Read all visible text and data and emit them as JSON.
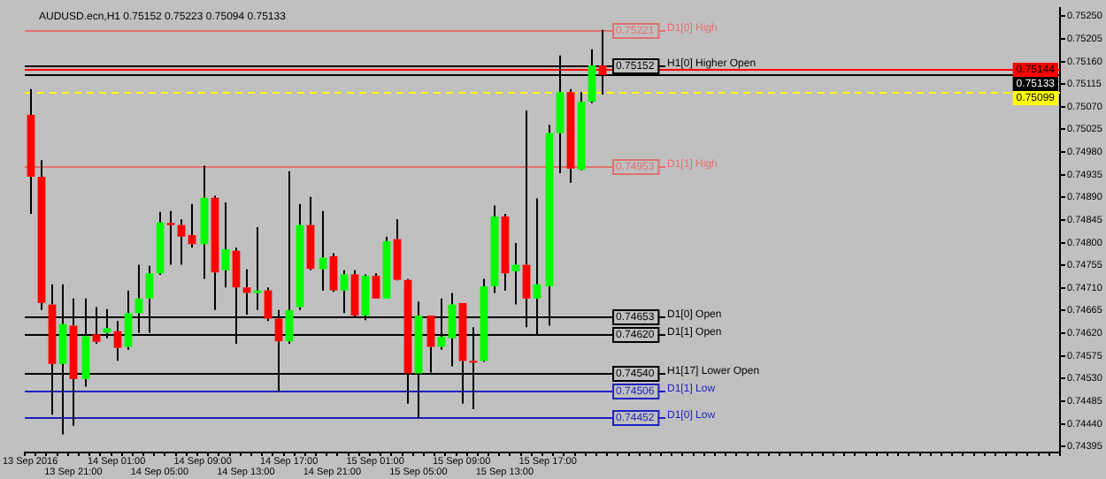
{
  "chart_data": {
    "type": "candlestick",
    "title": "AUDUSD.ecn,H1 0.75152 0.75223 0.75094 0.75133",
    "categories": [
      "13 Sep 2016",
      null,
      null,
      null,
      "13 Sep 21:00",
      null,
      null,
      null,
      "14 Sep 01:00",
      null,
      null,
      null,
      "14 Sep 05:00",
      null,
      null,
      null,
      "14 Sep 09:00",
      null,
      null,
      null,
      "14 Sep 13:00",
      null,
      null,
      null,
      "14 Sep 17:00",
      null,
      null,
      null,
      "14 Sep 21:00",
      null,
      null,
      null,
      "15 Sep 01:00",
      null,
      null,
      null,
      "15 Sep 05:00",
      null,
      null,
      null,
      "15 Sep 09:00",
      null,
      null,
      null,
      "15 Sep 13:00",
      null,
      null,
      null,
      "15 Sep 17:00",
      null,
      null,
      null,
      null,
      null,
      null,
      null,
      null,
      null,
      null,
      null,
      null,
      null,
      null,
      null,
      null,
      null,
      null,
      null,
      null,
      null,
      null,
      null,
      null,
      null,
      null,
      null,
      null,
      null,
      null,
      null,
      null,
      null,
      null,
      null,
      null,
      null,
      null,
      null,
      null,
      null,
      null,
      null,
      null,
      null,
      null,
      null
    ],
    "ohlc": [
      [
        0.75054,
        0.75105,
        0.74857,
        0.74931
      ],
      [
        0.74931,
        0.74964,
        0.74666,
        0.7468
      ],
      [
        0.74677,
        0.74717,
        0.74458,
        0.74559
      ],
      [
        0.74559,
        0.74717,
        0.74419,
        0.74638
      ],
      [
        0.74635,
        0.74689,
        0.74436,
        0.74529
      ],
      [
        0.74529,
        0.74689,
        0.74514,
        0.74614
      ],
      [
        0.74618,
        0.74672,
        0.74599,
        0.74603
      ],
      [
        0.74621,
        0.74668,
        0.7461,
        0.7463
      ],
      [
        0.74624,
        0.74644,
        0.74565,
        0.74591
      ],
      [
        0.74593,
        0.74705,
        0.74587,
        0.7466
      ],
      [
        0.7466,
        0.74756,
        0.74621,
        0.74689
      ],
      [
        0.74689,
        0.74754,
        0.74621,
        0.74739
      ],
      [
        0.74739,
        0.74861,
        0.74736,
        0.7484
      ],
      [
        0.74839,
        0.74863,
        0.74756,
        0.74835
      ],
      [
        0.74835,
        0.74846,
        0.74756,
        0.74812
      ],
      [
        0.74815,
        0.74877,
        0.7479,
        0.74797
      ],
      [
        0.74797,
        0.74953,
        0.74728,
        0.74889
      ],
      [
        0.74889,
        0.74893,
        0.74666,
        0.74741
      ],
      [
        0.74745,
        0.7488,
        0.74711,
        0.74787
      ],
      [
        0.74784,
        0.7479,
        0.74599,
        0.74711
      ],
      [
        0.74711,
        0.74747,
        0.74657,
        0.747
      ],
      [
        0.747,
        0.74831,
        0.74666,
        0.74705
      ],
      [
        0.74705,
        0.74711,
        0.74644,
        0.74649
      ],
      [
        0.74649,
        0.74666,
        0.74503,
        0.74604
      ],
      [
        0.74604,
        0.74942,
        0.74599,
        0.74666
      ],
      [
        0.74672,
        0.74877,
        0.74666,
        0.74835
      ],
      [
        0.74835,
        0.74891,
        0.74745,
        0.74748
      ],
      [
        0.74747,
        0.74863,
        0.74705,
        0.7477
      ],
      [
        0.74773,
        0.74779,
        0.74702,
        0.74705
      ],
      [
        0.74705,
        0.74745,
        0.7466,
        0.74737
      ],
      [
        0.74737,
        0.74745,
        0.74653,
        0.74655
      ],
      [
        0.74655,
        0.74737,
        0.74646,
        0.74734
      ],
      [
        0.74734,
        0.74739,
        0.74689,
        0.74689
      ],
      [
        0.74689,
        0.74812,
        0.74689,
        0.74803
      ],
      [
        0.74807,
        0.74846,
        0.74725,
        0.74726
      ],
      [
        0.74726,
        0.74728,
        0.7448,
        0.7454
      ],
      [
        0.7454,
        0.74683,
        0.74452,
        0.74655
      ],
      [
        0.74655,
        0.74655,
        0.74542,
        0.74593
      ],
      [
        0.74593,
        0.74689,
        0.74587,
        0.74613
      ],
      [
        0.7461,
        0.747,
        0.74554,
        0.74677
      ],
      [
        0.7468,
        0.7468,
        0.7448,
        0.74565
      ],
      [
        0.74565,
        0.74632,
        0.74469,
        0.74563
      ],
      [
        0.74565,
        0.74728,
        0.74563,
        0.74713
      ],
      [
        0.74713,
        0.74874,
        0.747,
        0.74852
      ],
      [
        0.74852,
        0.74857,
        0.74705,
        0.74739
      ],
      [
        0.74743,
        0.74799,
        0.74677,
        0.74756
      ],
      [
        0.74756,
        0.75062,
        0.74632,
        0.74689
      ],
      [
        0.74689,
        0.74888,
        0.74616,
        0.74717
      ],
      [
        0.74713,
        0.75034,
        0.74635,
        0.75018
      ],
      [
        0.75018,
        0.75172,
        0.74938,
        0.75099
      ],
      [
        0.75099,
        0.75105,
        0.74919,
        0.74947
      ],
      [
        0.74945,
        0.75099,
        0.74944,
        0.7508
      ],
      [
        0.7508,
        0.75184,
        0.75077,
        0.75152
      ],
      [
        0.75152,
        0.75223,
        0.75094,
        0.75133
      ],
      null,
      null,
      null,
      null,
      null,
      null,
      null,
      null,
      null,
      null,
      null,
      null,
      null,
      null,
      null,
      null,
      null,
      null,
      null,
      null,
      null,
      null,
      null,
      null,
      null,
      null,
      null,
      null,
      null,
      null,
      null,
      null,
      null,
      null,
      null,
      null,
      null,
      null,
      null,
      null,
      null,
      null
    ],
    "colors": [
      "#ff0000",
      "#ff0000",
      "#ff0000",
      "#00ff00",
      "#ff0000",
      "#00ff00",
      "#ff0000",
      "#00ff00",
      "#ff0000",
      "#00ff00",
      "#00ff00",
      "#00ff00",
      "#00ff00",
      "#ff0000",
      "#ff0000",
      "#ff0000",
      "#00ff00",
      "#ff0000",
      "#00ff00",
      "#ff0000",
      "#ff0000",
      "#00ff00",
      "#ff0000",
      "#ff0000",
      "#00ff00",
      "#00ff00",
      "#ff0000",
      "#00ff00",
      "#ff0000",
      "#00ff00",
      "#ff0000",
      "#00ff00",
      "#ff0000",
      "#00ff00",
      "#ff0000",
      "#ff0000",
      "#00ff00",
      "#ff0000",
      "#00ff00",
      "#00ff00",
      "#ff0000",
      "#ff0000",
      "#00ff00",
      "#00ff00",
      "#ff0000",
      "#00ff00",
      "#ff0000",
      "#00ff00",
      "#00ff00",
      "#00ff00",
      "#ff0000",
      "#00ff00",
      "#00ff00",
      "#ff0000",
      null,
      null,
      null,
      null,
      null,
      null,
      null,
      null,
      null,
      null,
      null,
      null,
      null,
      null,
      null,
      null,
      null,
      null,
      null,
      null,
      null,
      null,
      null,
      null,
      null,
      null,
      null,
      null,
      null,
      null,
      null,
      null,
      null,
      null,
      null,
      null,
      null,
      null,
      null,
      null,
      null,
      null
    ],
    "ylim": [
      0.74383,
      0.75267
    ],
    "yticks": [
      0.74395,
      {
        "value": 0.7444,
        "label": "0.74440"
      },
      0.74485,
      {
        "value": 0.7453,
        "label": "0.74530"
      },
      0.74575,
      {
        "value": 0.7462,
        "label": "0.74620"
      },
      0.74665,
      {
        "value": 0.7471,
        "label": "0.74710"
      },
      0.74755,
      {
        "value": 0.748,
        "label": "0.74800"
      },
      0.74845,
      {
        "value": 0.7489,
        "label": "0.74890"
      },
      0.74935,
      {
        "value": 0.7498,
        "label": "0.74980"
      },
      0.75025,
      {
        "value": 0.7507,
        "label": "0.75070"
      },
      0.75115,
      {
        "value": 0.7516,
        "label": "0.75160"
      },
      0.75205,
      {
        "value": 0.7525,
        "label": "0.75250"
      }
    ],
    "ref_lines": [
      {
        "axis": "y",
        "value": 0.75221,
        "label": "D1[0] High",
        "color": "#e07070"
      },
      {
        "axis": "y",
        "value": 0.75152,
        "label": "H1[0] Higher Open",
        "color": "#000000"
      },
      {
        "axis": "y",
        "value": 0.74953,
        "label": "D1[1] High",
        "color": "#e07070"
      },
      {
        "axis": "y",
        "value": 0.74653,
        "label": "D1[0] Open",
        "color": "#000000"
      },
      {
        "axis": "y",
        "value": 0.7462,
        "label": "D1[1] Open",
        "color": "#000000"
      },
      {
        "axis": "y",
        "value": 0.7454,
        "label": "H1[17] Lower Open",
        "color": "#000000"
      },
      {
        "axis": "y",
        "value": 0.74506,
        "label": "D1[1] Low",
        "color": "#2020c0"
      },
      {
        "axis": "y",
        "value": 0.74452,
        "label": "D1[0] Low",
        "color": "#2020c0"
      },
      {
        "axis": "y",
        "value": 0.75144,
        "color": "#ff0000"
      },
      {
        "axis": "y",
        "value": 0.75133,
        "color": "#000000"
      },
      {
        "axis": "y",
        "value": 0.75099,
        "color": "#ffff00",
        "line_style": "dashed"
      }
    ],
    "annotations": [
      {
        "text": "0.75221",
        "y": 0.75221
      },
      {
        "text": "0.75152",
        "y": 0.75152
      },
      {
        "text": "0.74953",
        "y": 0.74953
      },
      {
        "text": "0.74653",
        "y": 0.74653
      },
      {
        "text": "0.74620",
        "y": 0.7462
      },
      {
        "text": "0.74540",
        "y": 0.7454
      },
      {
        "text": "0.74506",
        "y": 0.74506
      },
      {
        "text": "0.74452",
        "y": 0.74452
      },
      {
        "text": "0.75144",
        "y": 0.75144
      },
      {
        "text": "0.75133",
        "y": 0.75133
      },
      {
        "text": "0.75099",
        "y": 0.75099
      }
    ],
    "grid": false,
    "legend": false
  }
}
